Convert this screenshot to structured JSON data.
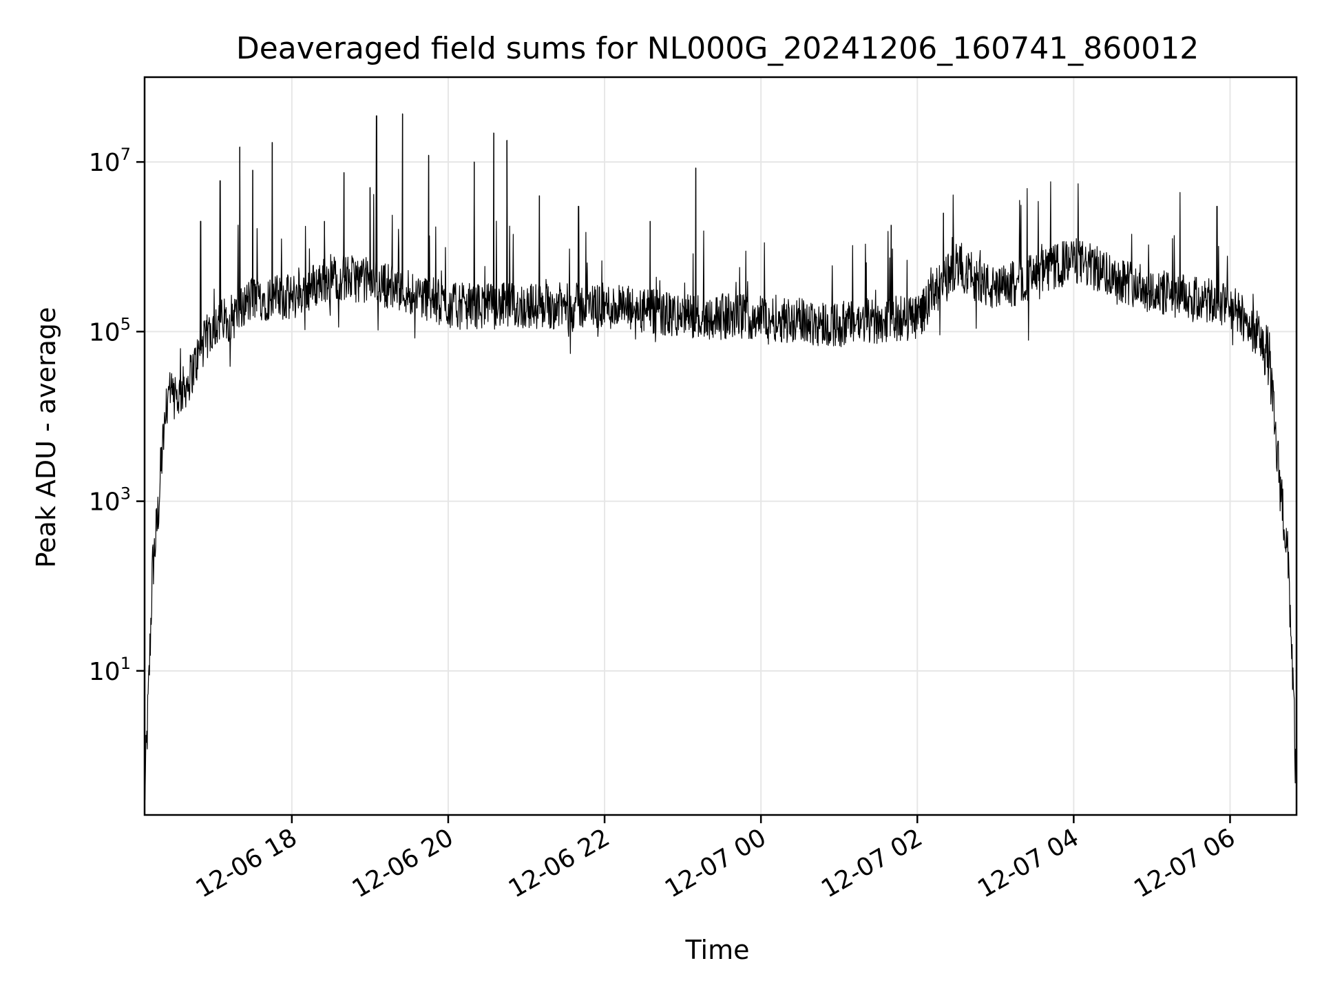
{
  "chart_data": {
    "type": "line",
    "title": "Deaveraged field sums for NL000G_20241206_160741_860012",
    "xlabel": "Time",
    "ylabel": "Peak ADU - average",
    "y_scale": "log",
    "grid": true,
    "xlim": [
      "2024-12-06 16:07",
      "2024-12-07 06:51"
    ],
    "ylim": [
      0.2,
      100000000
    ],
    "x_ticks": [
      "12-06 18",
      "12-06 20",
      "12-06 22",
      "12-07 00",
      "12-07 02",
      "12-07 04",
      "12-07 06"
    ],
    "y_ticks": [
      {
        "value": 10,
        "base": "10",
        "exp": "1"
      },
      {
        "value": 1000,
        "base": "10",
        "exp": "3"
      },
      {
        "value": 100000,
        "base": "10",
        "exp": "5"
      },
      {
        "value": 10000000,
        "base": "10",
        "exp": "7"
      }
    ],
    "series": [
      {
        "color": "#000000",
        "x": [
          "2024-12-06 16:07",
          "2024-12-06 16:10",
          "2024-12-06 16:13",
          "2024-12-06 16:17",
          "2024-12-06 16:20",
          "2024-12-06 16:25",
          "2024-12-06 16:30",
          "2024-12-06 16:40",
          "2024-12-06 16:50",
          "2024-12-06 17:00",
          "2024-12-06 17:15",
          "2024-12-06 17:30",
          "2024-12-06 18:00",
          "2024-12-06 18:30",
          "2024-12-06 19:00",
          "2024-12-06 19:30",
          "2024-12-06 20:00",
          "2024-12-06 21:00",
          "2024-12-06 22:00",
          "2024-12-06 23:00",
          "2024-12-07 00:00",
          "2024-12-07 01:00",
          "2024-12-07 02:00",
          "2024-12-07 02:30",
          "2024-12-07 03:00",
          "2024-12-07 04:00",
          "2024-12-07 05:00",
          "2024-12-07 06:00",
          "2024-12-07 06:20",
          "2024-12-07 06:30",
          "2024-12-07 06:35",
          "2024-12-07 06:40",
          "2024-12-07 06:45",
          "2024-12-07 06:48",
          "2024-12-07 06:51"
        ],
        "y": [
          0.3,
          5,
          150,
          600,
          3000,
          20000,
          15000,
          25000,
          60000,
          120000,
          150000,
          250000,
          250000,
          450000,
          400000,
          300000,
          200000,
          200000,
          200000,
          150000,
          150000,
          120000,
          150000,
          600000,
          300000,
          700000,
          300000,
          200000,
          100000,
          50000,
          5000,
          1000,
          150,
          10,
          0.3
        ]
      }
    ],
    "spikes": [
      {
        "x": "2024-12-06 16:50",
        "y": 2000000
      },
      {
        "x": "2024-12-06 17:05",
        "y": 6000000
      },
      {
        "x": "2024-12-06 17:20",
        "y": 15000000
      },
      {
        "x": "2024-12-06 17:30",
        "y": 8000000
      },
      {
        "x": "2024-12-06 17:45",
        "y": 17000000
      },
      {
        "x": "2024-12-06 18:25",
        "y": 2000000
      },
      {
        "x": "2024-12-06 18:40",
        "y": 7500000
      },
      {
        "x": "2024-12-06 19:00",
        "y": 5000000
      },
      {
        "x": "2024-12-06 19:05",
        "y": 35000000
      },
      {
        "x": "2024-12-06 19:25",
        "y": 37000000
      },
      {
        "x": "2024-12-06 19:45",
        "y": 12000000
      },
      {
        "x": "2024-12-06 20:20",
        "y": 10000000
      },
      {
        "x": "2024-12-06 20:35",
        "y": 22000000
      },
      {
        "x": "2024-12-06 20:45",
        "y": 18000000
      },
      {
        "x": "2024-12-06 21:10",
        "y": 4000000
      },
      {
        "x": "2024-12-06 21:40",
        "y": 3000000
      },
      {
        "x": "2024-12-06 22:35",
        "y": 2000000
      },
      {
        "x": "2024-12-06 23:10",
        "y": 8500000
      },
      {
        "x": "2024-12-07 01:40",
        "y": 1800000
      },
      {
        "x": "2024-12-07 02:20",
        "y": 2500000
      },
      {
        "x": "2024-12-07 05:50",
        "y": 3000000
      }
    ]
  }
}
